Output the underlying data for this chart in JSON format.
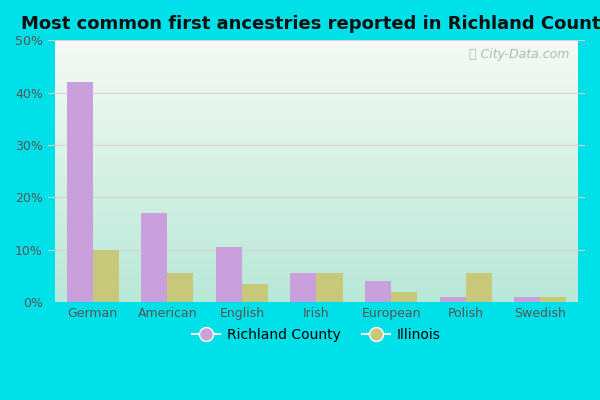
{
  "title": "Most common first ancestries reported in Richland County",
  "categories": [
    "German",
    "American",
    "English",
    "Irish",
    "European",
    "Polish",
    "Swedish"
  ],
  "richland_values": [
    42,
    17,
    10.5,
    5.5,
    4,
    1,
    1
  ],
  "illinois_values": [
    10,
    5.5,
    3.5,
    5.5,
    2,
    5.5,
    1
  ],
  "richland_color": "#c9a0dc",
  "illinois_color": "#c8c87a",
  "ylim": [
    0,
    50
  ],
  "yticks": [
    0,
    10,
    20,
    30,
    40,
    50
  ],
  "ytick_labels": [
    "0%",
    "10%",
    "20%",
    "30%",
    "40%",
    "50%"
  ],
  "outer_bg_color": "#00e0e8",
  "bar_width": 0.35,
  "legend_label_richland": "Richland County",
  "legend_label_illinois": "Illinois",
  "watermark": "City-Data.com",
  "title_fontsize": 13,
  "axis_fontsize": 9,
  "bg_topleft": "#f5faf5",
  "bg_bottomright": "#b8e8d8"
}
